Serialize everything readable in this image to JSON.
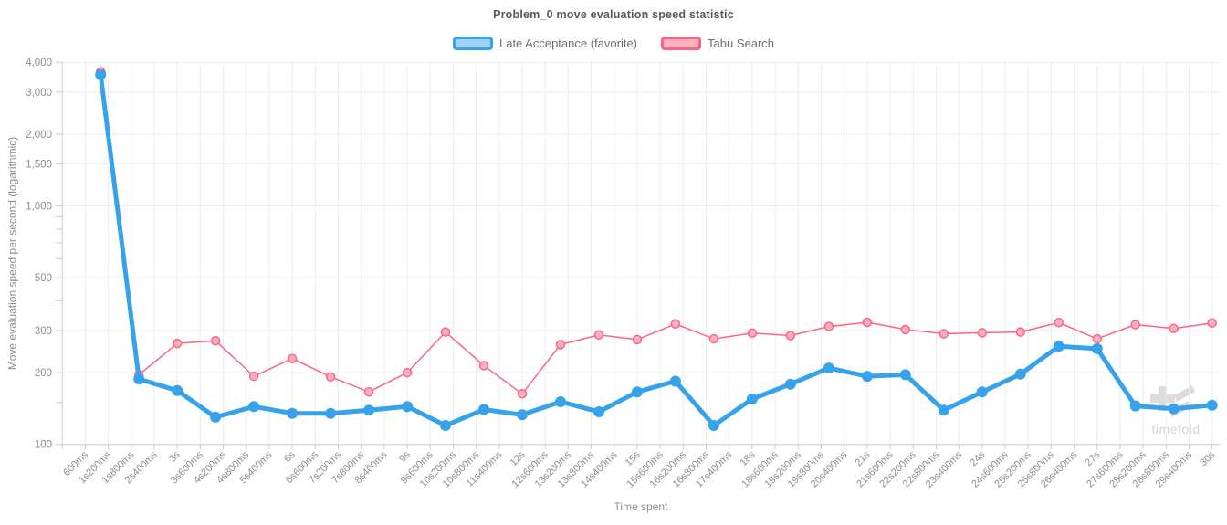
{
  "chart_data": {
    "type": "line",
    "title": "Problem_0 move evaluation speed statistic",
    "xlabel": "Time spent",
    "ylabel": "Move evaluation speed per second (logarithmic)",
    "legend_position": "top",
    "grid": true,
    "x_axis": {
      "tick_interval_seconds": 0.6,
      "tick_labels": [
        "600ms",
        "1s200ms",
        "1s800ms",
        "2s400ms",
        "3s",
        "3s600ms",
        "4s200ms",
        "4s800ms",
        "5s400ms",
        "6s",
        "6s600ms",
        "7s200ms",
        "7s800ms",
        "8s400ms",
        "9s",
        "9s600ms",
        "10s200ms",
        "10s800ms",
        "11s400ms",
        "12s",
        "12s600ms",
        "13s200ms",
        "13s800ms",
        "14s400ms",
        "15s",
        "15s600ms",
        "16s200ms",
        "16s800ms",
        "17s400ms",
        "18s",
        "18s600ms",
        "19s200ms",
        "19s800ms",
        "20s400ms",
        "21s",
        "21s600ms",
        "22s200ms",
        "22s800ms",
        "23s400ms",
        "24s",
        "24s600ms",
        "25s200ms",
        "25s800ms",
        "26s400ms",
        "27s",
        "27s600ms",
        "28s200ms",
        "28s800ms",
        "29s400ms",
        "30s"
      ]
    },
    "y_axis": {
      "scale": "log",
      "ylim": [
        100,
        4000
      ],
      "ticks": [
        {
          "value": 4000,
          "label": "4,000"
        },
        {
          "value": 3000,
          "label": "3,000"
        },
        {
          "value": 2000,
          "label": "2,000"
        },
        {
          "value": 1500,
          "label": "1,500"
        },
        {
          "value": 1000,
          "label": "1,000"
        },
        {
          "value": 500,
          "label": "500"
        },
        {
          "value": 300,
          "label": "300"
        },
        {
          "value": 200,
          "label": "200"
        },
        {
          "value": 100,
          "label": "100"
        }
      ],
      "minor_tick_values": [
        900,
        800,
        700,
        600,
        400,
        150
      ]
    },
    "series": [
      {
        "name": "Late Acceptance (favorite)",
        "color": "#36a2eb",
        "fill_color": "#9ed2f6",
        "line_width": 5,
        "point_radius": 6,
        "point_style": "solid",
        "x_seconds": [
          1,
          2,
          3,
          4,
          5,
          6,
          7,
          8,
          9,
          10,
          11,
          12,
          13,
          14,
          15,
          16,
          17,
          18,
          19,
          20,
          21,
          22,
          23,
          24,
          25,
          26,
          27,
          28,
          29,
          30
        ],
        "values": [
          3550,
          188,
          168,
          130,
          144,
          135,
          135,
          139,
          144,
          120,
          140,
          133,
          151,
          137,
          166,
          184,
          120,
          155,
          179,
          209,
          193,
          196,
          139,
          166,
          197,
          258,
          252,
          145,
          141,
          146
        ]
      },
      {
        "name": "Tabu Search",
        "color": "#ff6384",
        "fill_color": "#ffb1c1",
        "line_width": 1.5,
        "point_radius": 4.5,
        "point_style": "ring",
        "x_seconds": [
          1,
          2,
          3,
          4,
          5,
          6,
          7,
          8,
          9,
          10,
          11,
          12,
          13,
          14,
          15,
          16,
          17,
          18,
          19,
          20,
          21,
          22,
          23,
          24,
          25,
          26,
          27,
          28,
          29,
          30
        ],
        "values": [
          3650,
          196,
          265,
          272,
          193,
          229,
          192,
          166,
          200,
          296,
          214,
          163,
          262,
          288,
          275,
          320,
          277,
          293,
          286,
          312,
          325,
          303,
          291,
          294,
          296,
          324,
          277,
          318,
          306,
          323
        ]
      }
    ],
    "watermark": "timefold"
  }
}
